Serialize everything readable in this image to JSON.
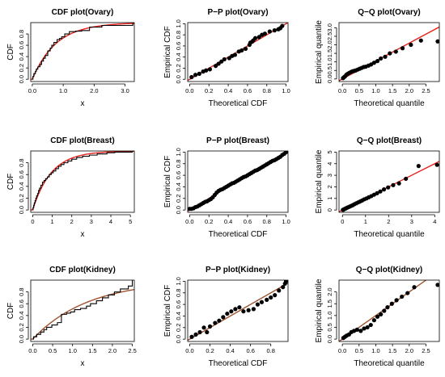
{
  "colors": {
    "fit": "#e8231e",
    "fit_kidney": "#a0522d",
    "empirical": "#000000",
    "points": "#000000"
  },
  "chart_data": [
    {
      "type": "line",
      "title": "CDF plot(Ovary)",
      "xlabel": "x",
      "ylabel": "CDF",
      "xlim": [
        -0.05,
        3.3
      ],
      "ylim": [
        -0.04,
        1.0
      ],
      "xticks": [
        "0.0",
        "1.0",
        "2.0",
        "3.0"
      ],
      "yticks": [
        "0.0",
        "0.2",
        "0.4",
        "0.6",
        "0.8"
      ],
      "xtick_values": [
        0,
        1,
        2,
        3
      ],
      "ytick_values": [
        0,
        0.2,
        0.4,
        0.6,
        0.8
      ],
      "series": [
        {
          "kind": "fit",
          "rate": 1.3
        },
        {
          "kind": "step",
          "x": [
            0.02,
            0.05,
            0.1,
            0.13,
            0.18,
            0.25,
            0.3,
            0.36,
            0.42,
            0.5,
            0.58,
            0.63,
            0.7,
            0.8,
            0.88,
            0.95,
            1.05,
            1.2,
            1.4,
            1.6,
            1.85,
            2.25,
            3.25
          ],
          "y": [
            0.05,
            0.1,
            0.14,
            0.18,
            0.22,
            0.26,
            0.32,
            0.37,
            0.42,
            0.5,
            0.55,
            0.6,
            0.65,
            0.7,
            0.72,
            0.75,
            0.8,
            0.84,
            0.85,
            0.86,
            0.92,
            0.95,
            1.0
          ]
        }
      ]
    },
    {
      "type": "scatter",
      "title": "P−P plot(Ovary)",
      "xlabel": "Theoretical CDF",
      "ylabel": "Empirical CDF",
      "xlim": [
        -0.02,
        1.02
      ],
      "ylim": [
        -0.04,
        1.02
      ],
      "xticks": [
        "0.0",
        "0.2",
        "0.4",
        "0.6",
        "0.8",
        "1.0"
      ],
      "yticks": [
        "0.0",
        "0.2",
        "0.4",
        "0.6",
        "0.8",
        "1.0"
      ],
      "xtick_values": [
        0,
        0.2,
        0.4,
        0.6,
        0.8,
        1
      ],
      "ytick_values": [
        0,
        0.2,
        0.4,
        0.6,
        0.8,
        1
      ],
      "series": [
        {
          "kind": "refline"
        },
        {
          "kind": "points",
          "x": [
            0.02,
            0.06,
            0.1,
            0.14,
            0.17,
            0.21,
            0.27,
            0.3,
            0.33,
            0.36,
            0.41,
            0.44,
            0.47,
            0.51,
            0.54,
            0.58,
            0.62,
            0.63,
            0.65,
            0.66,
            0.68,
            0.72,
            0.75,
            0.78,
            0.83,
            0.88,
            0.92,
            0.94,
            0.96
          ],
          "y": [
            0.04,
            0.08,
            0.1,
            0.14,
            0.16,
            0.18,
            0.24,
            0.28,
            0.32,
            0.36,
            0.38,
            0.42,
            0.44,
            0.5,
            0.52,
            0.55,
            0.62,
            0.66,
            0.68,
            0.7,
            0.74,
            0.76,
            0.8,
            0.82,
            0.86,
            0.88,
            0.9,
            0.92,
            0.96
          ]
        }
      ]
    },
    {
      "type": "scatter",
      "title": "Q−Q plot(Ovary)",
      "xlabel": "Theoretical quantile",
      "ylabel": "Empirical quantile",
      "xlim": [
        -0.1,
        2.9
      ],
      "ylim": [
        -0.15,
        3.3
      ],
      "xticks": [
        "0.0",
        "0.5",
        "1.0",
        "1.5",
        "2.0",
        "2.5"
      ],
      "yticks": [
        "0.0",
        "0.5",
        "1.0",
        "1.5",
        "2.0",
        "2.5",
        "3.0"
      ],
      "xtick_values": [
        0,
        0.5,
        1,
        1.5,
        2,
        2.5
      ],
      "ytick_values": [
        0,
        0.5,
        1,
        1.5,
        2,
        2.5,
        3
      ],
      "series": [
        {
          "kind": "refline",
          "slope": 1.05
        },
        {
          "kind": "points",
          "x": [
            0.02,
            0.05,
            0.08,
            0.12,
            0.16,
            0.2,
            0.25,
            0.3,
            0.35,
            0.4,
            0.46,
            0.52,
            0.58,
            0.64,
            0.7,
            0.78,
            0.86,
            0.95,
            1.05,
            1.15,
            1.28,
            1.42,
            1.6,
            1.8,
            2.05,
            2.35,
            2.85
          ],
          "y": [
            0.05,
            0.1,
            0.15,
            0.25,
            0.3,
            0.35,
            0.4,
            0.45,
            0.47,
            0.5,
            0.55,
            0.6,
            0.65,
            0.7,
            0.72,
            0.78,
            0.85,
            0.95,
            1.05,
            1.2,
            1.3,
            1.5,
            1.6,
            1.8,
            2.0,
            2.25,
            2.2
          ]
        }
      ]
    },
    {
      "type": "line",
      "title": "CDF plot(Breast)",
      "xlabel": "x",
      "ylabel": "CDF",
      "xlim": [
        -0.1,
        5.2
      ],
      "ylim": [
        -0.04,
        1.0
      ],
      "xticks": [
        "0",
        "1",
        "2",
        "3",
        "4",
        "5"
      ],
      "yticks": [
        "0.0",
        "0.2",
        "0.4",
        "0.6",
        "0.8"
      ],
      "xtick_values": [
        0,
        1,
        2,
        3,
        4,
        5
      ],
      "ytick_values": [
        0,
        0.2,
        0.4,
        0.6,
        0.8
      ],
      "series": [
        {
          "kind": "fit",
          "rate": 1.05
        },
        {
          "kind": "step",
          "x": [
            0.02,
            0.05,
            0.08,
            0.12,
            0.16,
            0.2,
            0.25,
            0.3,
            0.35,
            0.42,
            0.5,
            0.58,
            0.66,
            0.75,
            0.85,
            0.95,
            1.05,
            1.18,
            1.32,
            1.45,
            1.6,
            1.8,
            2.0,
            2.25,
            2.55,
            2.9,
            3.3,
            3.8,
            4.2,
            5.1
          ],
          "y": [
            0.04,
            0.08,
            0.12,
            0.16,
            0.2,
            0.24,
            0.28,
            0.33,
            0.37,
            0.42,
            0.47,
            0.5,
            0.53,
            0.56,
            0.6,
            0.63,
            0.66,
            0.7,
            0.74,
            0.77,
            0.8,
            0.83,
            0.86,
            0.89,
            0.91,
            0.93,
            0.95,
            0.97,
            0.98,
            1.0
          ]
        }
      ]
    },
    {
      "type": "scatter",
      "title": "P−P plot(Breast)",
      "xlabel": "Theoretical CDF",
      "ylabel": "Empirical CDF",
      "xlim": [
        -0.02,
        1.02
      ],
      "ylim": [
        -0.04,
        1.02
      ],
      "xticks": [
        "0.0",
        "0.2",
        "0.4",
        "0.6",
        "0.8",
        "1.0"
      ],
      "yticks": [
        "0.0",
        "0.2",
        "0.4",
        "0.6",
        "0.8",
        "1.0"
      ],
      "xtick_values": [
        0,
        0.2,
        0.4,
        0.6,
        0.8,
        1
      ],
      "ytick_values": [
        0,
        0.2,
        0.4,
        0.6,
        0.8,
        1
      ],
      "series": [
        {
          "kind": "refline"
        },
        {
          "kind": "points",
          "x": [
            0.0,
            0.02,
            0.04,
            0.06,
            0.08,
            0.1,
            0.12,
            0.14,
            0.16,
            0.18,
            0.2,
            0.22,
            0.24,
            0.26,
            0.28,
            0.3,
            0.32,
            0.34,
            0.36,
            0.38,
            0.4,
            0.42,
            0.44,
            0.46,
            0.48,
            0.5,
            0.52,
            0.54,
            0.56,
            0.58,
            0.6,
            0.62,
            0.64,
            0.66,
            0.68,
            0.7,
            0.72,
            0.74,
            0.76,
            0.78,
            0.8,
            0.82,
            0.84,
            0.86,
            0.88,
            0.9,
            0.92,
            0.94,
            0.96,
            0.98,
            1.0
          ],
          "y": [
            0.02,
            0.02,
            0.03,
            0.05,
            0.06,
            0.08,
            0.1,
            0.12,
            0.14,
            0.15,
            0.17,
            0.19,
            0.22,
            0.26,
            0.3,
            0.33,
            0.35,
            0.36,
            0.38,
            0.4,
            0.42,
            0.44,
            0.46,
            0.47,
            0.49,
            0.51,
            0.53,
            0.55,
            0.57,
            0.58,
            0.6,
            0.62,
            0.64,
            0.66,
            0.68,
            0.69,
            0.71,
            0.73,
            0.75,
            0.77,
            0.79,
            0.81,
            0.83,
            0.85,
            0.86,
            0.88,
            0.9,
            0.92,
            0.95,
            0.97,
            1.0
          ]
        }
      ]
    },
    {
      "type": "scatter",
      "title": "Q−Q plot(Breast)",
      "xlabel": "Theoretical quantile",
      "ylabel": "Empirical quantile",
      "xlim": [
        -0.15,
        4.2
      ],
      "ylim": [
        -0.2,
        5.1
      ],
      "xticks": [
        "0",
        "1",
        "2",
        "3",
        "4"
      ],
      "yticks": [
        "0",
        "1",
        "2",
        "3",
        "4",
        "5"
      ],
      "xtick_values": [
        0,
        1,
        2,
        3,
        4
      ],
      "ytick_values": [
        0,
        1,
        2,
        3,
        4,
        5
      ],
      "series": [
        {
          "kind": "refline",
          "slope": 1.0
        },
        {
          "kind": "points",
          "x": [
            0.02,
            0.06,
            0.1,
            0.15,
            0.2,
            0.26,
            0.32,
            0.38,
            0.45,
            0.52,
            0.6,
            0.68,
            0.76,
            0.85,
            0.94,
            1.04,
            1.14,
            1.25,
            1.37,
            1.5,
            1.64,
            1.8,
            1.98,
            2.2,
            2.45,
            2.75,
            3.3,
            4.1
          ],
          "y": [
            0.02,
            0.05,
            0.1,
            0.14,
            0.2,
            0.25,
            0.3,
            0.36,
            0.42,
            0.5,
            0.58,
            0.66,
            0.73,
            0.82,
            0.92,
            1.0,
            1.1,
            1.2,
            1.32,
            1.45,
            1.6,
            1.78,
            1.95,
            2.15,
            2.3,
            2.7,
            3.8,
            3.9
          ]
        }
      ]
    },
    {
      "type": "line",
      "title": "CDF plot(Kidney)",
      "xlabel": "x",
      "ylabel": "CDF",
      "xlim": [
        -0.05,
        2.55
      ],
      "ylim": [
        -0.04,
        1.0
      ],
      "xticks": [
        "0.0",
        "0.5",
        "1.0",
        "1.5",
        "2.0",
        "2.5"
      ],
      "yticks": [
        "0.0",
        "0.2",
        "0.4",
        "0.6",
        "0.8"
      ],
      "xtick_values": [
        0,
        0.5,
        1,
        1.5,
        2,
        2.5
      ],
      "ytick_values": [
        0,
        0.2,
        0.4,
        0.6,
        0.8
      ],
      "series": [
        {
          "kind": "fit",
          "rate": 0.72
        },
        {
          "kind": "step",
          "x": [
            0.02,
            0.1,
            0.2,
            0.28,
            0.35,
            0.48,
            0.62,
            0.72,
            0.85,
            0.95,
            1.05,
            1.2,
            1.35,
            1.45,
            1.6,
            1.75,
            1.9,
            2.05,
            2.2,
            2.4,
            2.5
          ],
          "y": [
            0.04,
            0.08,
            0.12,
            0.16,
            0.2,
            0.24,
            0.28,
            0.42,
            0.44,
            0.46,
            0.5,
            0.52,
            0.56,
            0.6,
            0.65,
            0.7,
            0.75,
            0.8,
            0.85,
            0.9,
            1.0
          ]
        }
      ]
    },
    {
      "type": "scatter",
      "title": "P−P plot(Kidney)",
      "xlabel": "Theoretical CDF",
      "ylabel": "Empirical CDF",
      "xlim": [
        -0.02,
        0.97
      ],
      "ylim": [
        -0.04,
        1.02
      ],
      "xticks": [
        "0.0",
        "0.2",
        "0.4",
        "0.6",
        "0.8"
      ],
      "yticks": [
        "0.0",
        "0.2",
        "0.4",
        "0.6",
        "0.8",
        "1.0"
      ],
      "xtick_values": [
        0,
        0.2,
        0.4,
        0.6,
        0.8
      ],
      "ytick_values": [
        0,
        0.2,
        0.4,
        0.6,
        0.8,
        1
      ],
      "series": [
        {
          "kind": "refline"
        },
        {
          "kind": "points",
          "x": [
            0.02,
            0.06,
            0.1,
            0.14,
            0.17,
            0.2,
            0.25,
            0.29,
            0.33,
            0.37,
            0.41,
            0.45,
            0.49,
            0.53,
            0.58,
            0.63,
            0.67,
            0.71,
            0.76,
            0.8,
            0.84,
            0.88,
            0.92,
            0.94,
            0.95
          ],
          "y": [
            0.04,
            0.08,
            0.12,
            0.2,
            0.12,
            0.22,
            0.28,
            0.32,
            0.38,
            0.44,
            0.48,
            0.52,
            0.55,
            0.48,
            0.5,
            0.52,
            0.6,
            0.64,
            0.68,
            0.72,
            0.76,
            0.84,
            0.9,
            0.96,
            1.0
          ]
        }
      ]
    },
    {
      "type": "scatter",
      "title": "Q−Q plot(Kidney)",
      "xlabel": "Theoretical quantile",
      "ylabel": "Empirical quantile",
      "xlim": [
        -0.1,
        2.9
      ],
      "ylim": [
        -0.1,
        2.5
      ],
      "xticks": [
        "0.0",
        "0.5",
        "1.0",
        "1.5",
        "2.0",
        "2.5"
      ],
      "yticks": [
        "0.0",
        "0.5",
        "1.0",
        "1.5",
        "2.0"
      ],
      "xtick_values": [
        0,
        0.5,
        1,
        1.5,
        2,
        2.5
      ],
      "ytick_values": [
        0,
        0.5,
        1,
        1.5,
        2
      ],
      "series": [
        {
          "kind": "refline",
          "slope": 1.0
        },
        {
          "kind": "points",
          "x": [
            0.03,
            0.08,
            0.13,
            0.2,
            0.27,
            0.35,
            0.44,
            0.55,
            0.65,
            0.75,
            0.85,
            0.95,
            1.05,
            1.15,
            1.25,
            1.35,
            1.48,
            1.62,
            1.78,
            1.95,
            2.15,
            2.85
          ],
          "y": [
            0.05,
            0.1,
            0.15,
            0.2,
            0.3,
            0.35,
            0.4,
            0.35,
            0.45,
            0.5,
            0.6,
            0.8,
            0.95,
            1.05,
            1.2,
            1.35,
            1.5,
            1.65,
            1.8,
            1.95,
            2.2,
            2.3
          ]
        }
      ]
    }
  ]
}
